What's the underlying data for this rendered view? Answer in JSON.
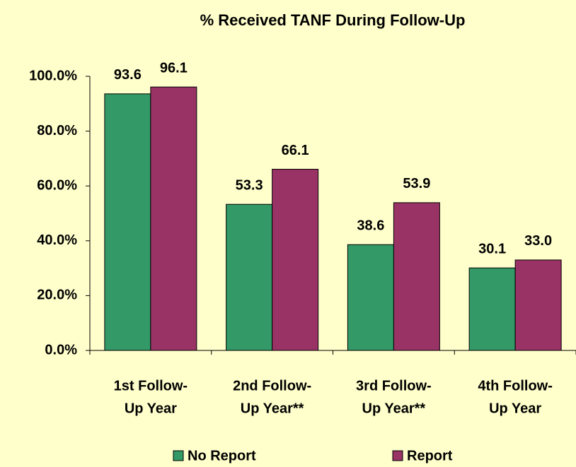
{
  "chart_data": {
    "type": "bar",
    "title": "% Received TANF During Follow-Up",
    "categories": [
      [
        "1st Follow-",
        "Up Year"
      ],
      [
        "2nd Follow-",
        "Up Year**"
      ],
      [
        "3rd Follow-",
        "Up Year**"
      ],
      [
        "4th Follow-",
        "Up Year"
      ]
    ],
    "series": [
      {
        "name": "No Report",
        "color": "#339966",
        "values": [
          93.6,
          53.3,
          38.6,
          30.1
        ],
        "value_labels": [
          "93.6",
          "53.3",
          "38.6",
          "30.1"
        ]
      },
      {
        "name": "Report",
        "color": "#993366",
        "values": [
          96.1,
          66.1,
          53.9,
          33
        ],
        "value_labels": [
          "96.1",
          "66.1",
          "53.9",
          "33.0"
        ]
      }
    ],
    "ylim": [
      0,
      100
    ],
    "yticks": [
      {
        "value": 0,
        "label": "0.0%"
      },
      {
        "value": 20,
        "label": "20.0%"
      },
      {
        "value": 40,
        "label": "40.0%"
      },
      {
        "value": 60,
        "label": "60.0%"
      },
      {
        "value": 80,
        "label": "80.0%"
      },
      {
        "value": 100,
        "label": "100.0%"
      }
    ],
    "grid": false,
    "legend": "bottom"
  }
}
